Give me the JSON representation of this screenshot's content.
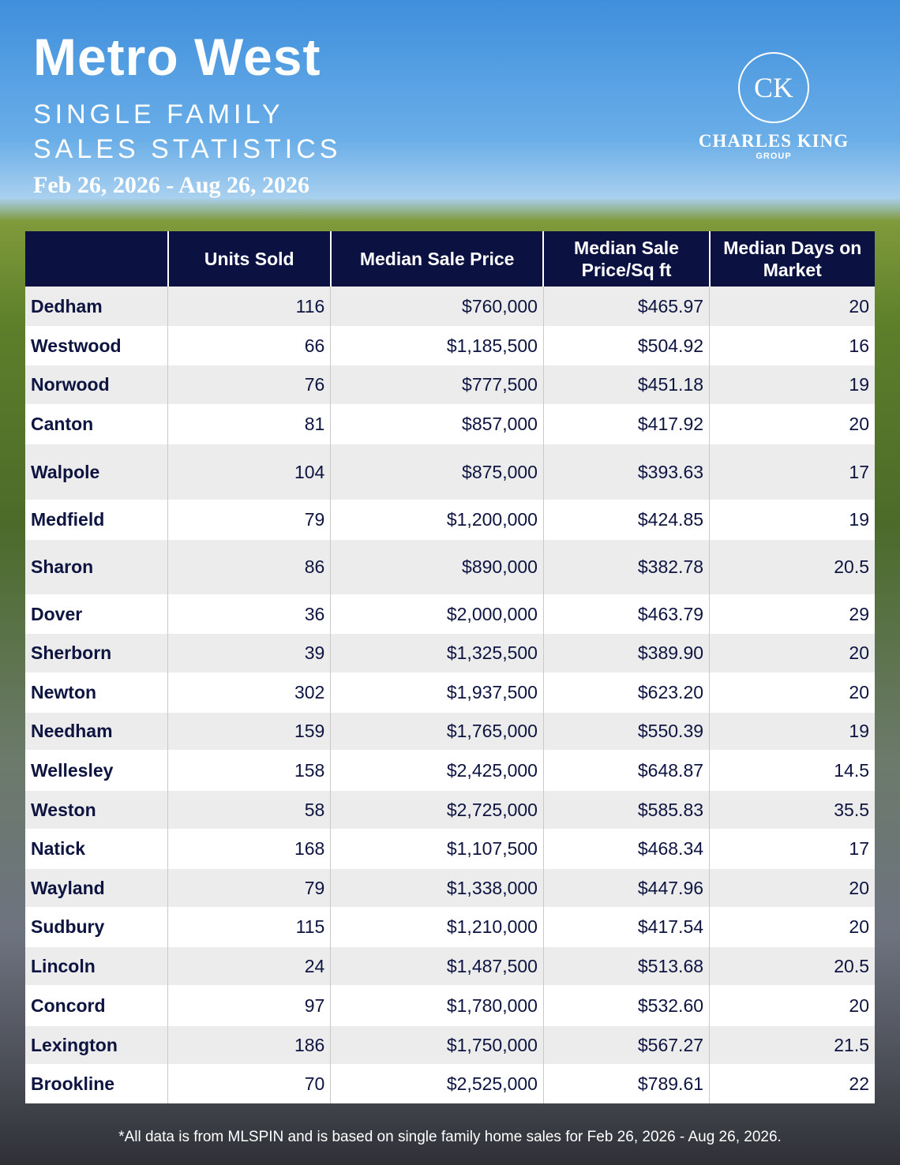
{
  "header": {
    "title": "Metro West",
    "subtitle_lines": [
      "SINGLE FAMILY",
      "SALES STATISTICS"
    ],
    "dates": "Feb 26, 2026 - Aug 26, 2026"
  },
  "logo": {
    "monogram": "CK",
    "name": "CHARLES KING",
    "tagline": "GROUP"
  },
  "table": {
    "columns": [
      "",
      "Units Sold",
      "Median Sale Price",
      "Median Sale Price/Sq ft",
      "Median Days on Market"
    ],
    "rows": [
      [
        "Dedham",
        "116",
        "$760,000",
        "$465.97",
        "20"
      ],
      [
        "Westwood",
        "66",
        "$1,185,500",
        "$504.92",
        "16"
      ],
      [
        "Norwood",
        "76",
        "$777,500",
        "$451.18",
        "19"
      ],
      [
        "Canton",
        "81",
        "$857,000",
        "$417.92",
        "20"
      ],
      [
        "Walpole",
        "104",
        "$875,000",
        "$393.63",
        "17"
      ],
      [
        "Medfield",
        "79",
        "$1,200,000",
        "$424.85",
        "19"
      ],
      [
        "Sharon",
        "86",
        "$890,000",
        "$382.78",
        "20.5"
      ],
      [
        "Dover",
        "36",
        "$2,000,000",
        "$463.79",
        "29"
      ],
      [
        "Sherborn",
        "39",
        "$1,325,500",
        "$389.90",
        "20"
      ],
      [
        "Newton",
        "302",
        "$1,937,500",
        "$623.20",
        "20"
      ],
      [
        "Needham",
        "159",
        "$1,765,000",
        "$550.39",
        "19"
      ],
      [
        "Wellesley",
        "158",
        "$2,425,000",
        "$648.87",
        "14.5"
      ],
      [
        "Weston",
        "58",
        "$2,725,000",
        "$585.83",
        "35.5"
      ],
      [
        "Natick",
        "168",
        "$1,107,500",
        "$468.34",
        "17"
      ],
      [
        "Wayland",
        "79",
        "$1,338,000",
        "$447.96",
        "20"
      ],
      [
        "Sudbury",
        "115",
        "$1,210,000",
        "$417.54",
        "20"
      ],
      [
        "Lincoln",
        "24",
        "$1,487,500",
        "$513.68",
        "20.5"
      ],
      [
        "Concord",
        "97",
        "$1,780,000",
        "$532.60",
        "20"
      ],
      [
        "Lexington",
        "186",
        "$1,750,000",
        "$567.27",
        "21.5"
      ],
      [
        "Brookline",
        "70",
        "$2,525,000",
        "$789.61",
        "22"
      ]
    ]
  },
  "footer": {
    "note": "*All data is from MLSPIN and is based on single family home sales for Feb 26, 2026 - Aug 26, 2026."
  }
}
